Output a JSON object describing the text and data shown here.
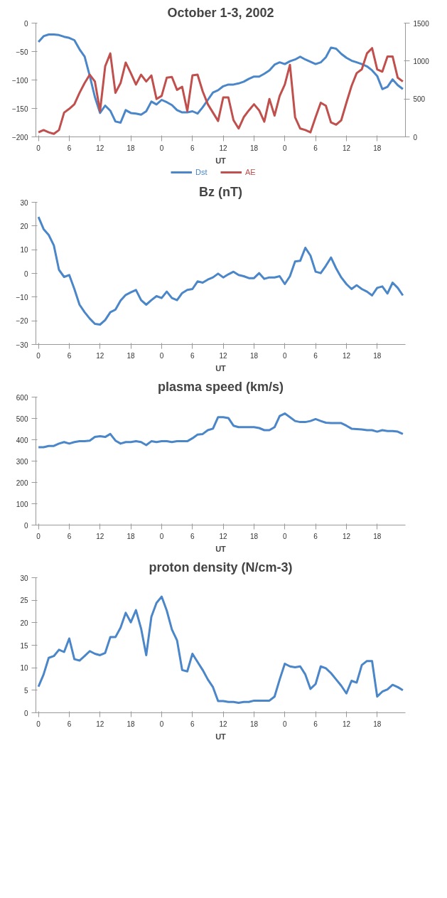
{
  "chart_data": [
    {
      "type": "line",
      "title": "October 1-3, 2002",
      "xlabel": "UT",
      "legend": "bottom",
      "categories": [
        "0",
        null,
        null,
        null,
        null,
        null,
        "6",
        null,
        null,
        null,
        null,
        null,
        "12",
        null,
        null,
        null,
        null,
        null,
        "18",
        null,
        null,
        null,
        null,
        null,
        "0",
        null,
        null,
        null,
        null,
        null,
        "6",
        null,
        null,
        null,
        null,
        null,
        "12",
        null,
        null,
        null,
        null,
        null,
        "18",
        null,
        null,
        null,
        null,
        null,
        "0",
        null,
        null,
        null,
        null,
        null,
        "6",
        null,
        null,
        null,
        null,
        null,
        "12",
        null,
        null,
        null,
        null,
        null,
        "18",
        null,
        null,
        null,
        null,
        null
      ],
      "ylim": [
        -200,
        0
      ],
      "yticks": [
        -200,
        -150,
        -100,
        -50,
        0
      ],
      "y2lim": [
        0,
        1500
      ],
      "y2ticks": [
        0,
        500,
        1000,
        1500
      ],
      "series": [
        {
          "name": "Dst",
          "color": "#4a86c8",
          "values": [
            -33,
            -23,
            -20,
            -20,
            -21,
            -24,
            -26,
            -30,
            -46,
            -59,
            -93,
            -130,
            -158,
            -145,
            -154,
            -173,
            -175,
            -153,
            -158,
            -159,
            -161,
            -155,
            -138,
            -143,
            -135,
            -139,
            -144,
            -153,
            -157,
            -157,
            -155,
            -159,
            -148,
            -135,
            -122,
            -118,
            -111,
            -108,
            -108,
            -106,
            -103,
            -98,
            -94,
            -94,
            -89,
            -83,
            -73,
            -69,
            -72,
            -67,
            -64,
            -59,
            -64,
            -68,
            -72,
            -69,
            -60,
            -43,
            -45,
            -54,
            -61,
            -66,
            -69,
            -72,
            -76,
            -83,
            -93,
            -116,
            -112,
            -99,
            -109,
            -116
          ]
        },
        {
          "name": "AE",
          "color": "#c0504d",
          "axis": "y2",
          "values": [
            60,
            90,
            60,
            40,
            90,
            320,
            370,
            430,
            580,
            710,
            820,
            730,
            340,
            930,
            1100,
            580,
            710,
            980,
            840,
            690,
            820,
            730,
            810,
            500,
            540,
            780,
            790,
            620,
            660,
            340,
            810,
            820,
            600,
            430,
            320,
            210,
            520,
            520,
            220,
            110,
            260,
            350,
            430,
            350,
            200,
            500,
            280,
            540,
            690,
            950,
            260,
            110,
            90,
            60,
            260,
            450,
            410,
            190,
            160,
            220,
            450,
            670,
            840,
            890,
            1100,
            1170,
            890,
            860,
            1060,
            1060,
            780,
            730
          ]
        }
      ]
    },
    {
      "type": "line",
      "title": "Bz (nT)",
      "xlabel": "UT",
      "categories": [
        "0",
        null,
        null,
        null,
        null,
        null,
        "6",
        null,
        null,
        null,
        null,
        null,
        "12",
        null,
        null,
        null,
        null,
        null,
        "18",
        null,
        null,
        null,
        null,
        null,
        "0",
        null,
        null,
        null,
        null,
        null,
        "6",
        null,
        null,
        null,
        null,
        null,
        "12",
        null,
        null,
        null,
        null,
        null,
        "18",
        null,
        null,
        null,
        null,
        null,
        "0",
        null,
        null,
        null,
        null,
        null,
        "6",
        null,
        null,
        null,
        null,
        null,
        "12",
        null,
        null,
        null,
        null,
        null,
        "18",
        null,
        null,
        null,
        null,
        null
      ],
      "ylim": [
        -30,
        30
      ],
      "yticks": [
        -30,
        -20,
        -10,
        0,
        10,
        20,
        30
      ],
      "series": [
        {
          "color": "#4a86c8",
          "values": [
            23.8,
            18.7,
            16.2,
            11.8,
            1.5,
            -1.5,
            -0.7,
            -6.6,
            -13.2,
            -16.4,
            -19.1,
            -21.3,
            -21.6,
            -19.7,
            -16.4,
            -15.3,
            -11.5,
            -9.1,
            -8.0,
            -7.0,
            -11.3,
            -13.2,
            -11.3,
            -9.6,
            -10.4,
            -7.7,
            -10.4,
            -11.3,
            -8.3,
            -7.0,
            -6.6,
            -3.4,
            -3.9,
            -2.6,
            -1.7,
            -0.1,
            -1.7,
            -0.4,
            0.7,
            -0.7,
            -1.2,
            -2.0,
            -2.0,
            0.1,
            -2.3,
            -1.7,
            -1.7,
            -1.2,
            -4.5,
            -1.2,
            5.0,
            5.3,
            10.8,
            7.5,
            0.7,
            0.1,
            3.2,
            6.7,
            2.1,
            -1.7,
            -4.5,
            -6.6,
            -5.0,
            -6.6,
            -7.7,
            -9.3,
            -6.1,
            -5.5,
            -8.5,
            -3.9,
            -6.1,
            -9.3
          ]
        }
      ]
    },
    {
      "type": "line",
      "title": "plasma speed (km/s)",
      "xlabel": "UT",
      "categories": [
        "0",
        null,
        null,
        null,
        null,
        null,
        "6",
        null,
        null,
        null,
        null,
        null,
        "12",
        null,
        null,
        null,
        null,
        null,
        "18",
        null,
        null,
        null,
        null,
        null,
        "0",
        null,
        null,
        null,
        null,
        null,
        "6",
        null,
        null,
        null,
        null,
        null,
        "12",
        null,
        null,
        null,
        null,
        null,
        "18",
        null,
        null,
        null,
        null,
        null,
        "0",
        null,
        null,
        null,
        null,
        null,
        "6",
        null,
        null,
        null,
        null,
        null,
        "12",
        null,
        null,
        null,
        null,
        null,
        "18",
        null,
        null,
        null,
        null,
        null
      ],
      "ylim": [
        0,
        600
      ],
      "yticks": [
        0,
        100,
        200,
        300,
        400,
        500,
        600
      ],
      "series": [
        {
          "color": "#4a86c8",
          "values": [
            365,
            365,
            371,
            371,
            382,
            389,
            382,
            389,
            393,
            393,
            396,
            413,
            417,
            413,
            427,
            396,
            382,
            389,
            389,
            393,
            389,
            375,
            393,
            389,
            393,
            393,
            389,
            393,
            393,
            393,
            407,
            424,
            427,
            445,
            452,
            506,
            506,
            502,
            466,
            459,
            459,
            459,
            459,
            455,
            445,
            445,
            459,
            511,
            523,
            506,
            488,
            483,
            483,
            488,
            497,
            488,
            480,
            478,
            478,
            478,
            466,
            452,
            450,
            448,
            445,
            445,
            438,
            445,
            441,
            441,
            438,
            427
          ]
        }
      ]
    },
    {
      "type": "line",
      "title": "proton density (N/cm-3)",
      "xlabel": "UT",
      "categories": [
        "0",
        null,
        null,
        null,
        null,
        null,
        "6",
        null,
        null,
        null,
        null,
        null,
        "12",
        null,
        null,
        null,
        null,
        null,
        "18",
        null,
        null,
        null,
        null,
        null,
        "0",
        null,
        null,
        null,
        null,
        null,
        "6",
        null,
        null,
        null,
        null,
        null,
        "12",
        null,
        null,
        null,
        null,
        null,
        "18",
        null,
        null,
        null,
        null,
        null,
        "0",
        null,
        null,
        null,
        null,
        null,
        "6",
        null,
        null,
        null,
        null,
        null,
        "12",
        null,
        null,
        null,
        null,
        null,
        "18",
        null,
        null,
        null,
        null,
        null
      ],
      "ylim": [
        0,
        30
      ],
      "yticks": [
        0,
        5,
        10,
        15,
        20,
        25,
        30
      ],
      "series": [
        {
          "color": "#4a86c8",
          "values": [
            5.8,
            8.5,
            12.2,
            12.6,
            14.0,
            13.5,
            16.5,
            11.9,
            11.6,
            12.6,
            13.7,
            13.1,
            12.8,
            13.3,
            16.8,
            16.8,
            18.9,
            22.2,
            20.1,
            22.8,
            18.7,
            12.8,
            21.3,
            24.4,
            25.8,
            22.7,
            18.5,
            16.1,
            9.5,
            9.2,
            13.1,
            11.3,
            9.5,
            7.4,
            5.7,
            2.6,
            2.6,
            2.4,
            2.4,
            2.2,
            2.4,
            2.4,
            2.7,
            2.7,
            2.7,
            2.7,
            3.6,
            7.4,
            10.9,
            10.3,
            10.1,
            10.3,
            8.5,
            5.3,
            6.4,
            10.3,
            9.9,
            8.8,
            7.4,
            6.0,
            4.3,
            7.1,
            6.7,
            10.6,
            11.5,
            11.5,
            3.6,
            4.7,
            5.2,
            6.2,
            5.7,
            5.0
          ]
        }
      ]
    }
  ]
}
